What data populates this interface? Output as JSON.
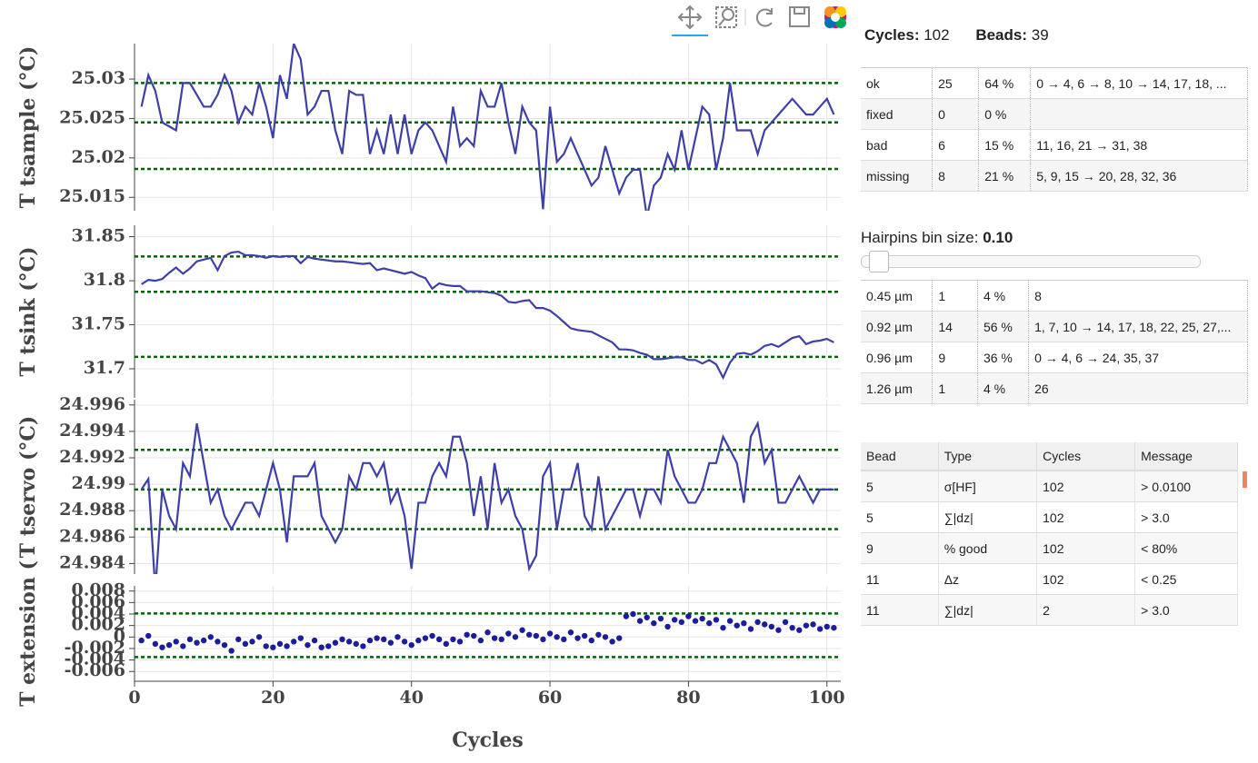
{
  "chart_data": [
    {
      "type": "line",
      "ylabel": "T tsample (°C)",
      "color": "#3f3fa8",
      "grid": true,
      "xlim": [
        0,
        102
      ],
      "xticks": [
        0,
        20,
        40,
        60,
        80,
        100
      ],
      "ylim": [
        25.0133,
        25.0345
      ],
      "yticks": [
        25.015,
        25.02,
        25.025,
        25.03
      ],
      "hlines": {
        "color": "#006400",
        "values": [
          25.0295,
          25.0245,
          25.0186
        ]
      },
      "x": [
        1,
        2,
        3,
        4,
        5,
        6,
        7,
        8,
        9,
        10,
        11,
        12,
        13,
        14,
        15,
        16,
        17,
        18,
        19,
        20,
        21,
        22,
        23,
        24,
        25,
        26,
        27,
        28,
        29,
        30,
        31,
        32,
        33,
        34,
        35,
        36,
        37,
        38,
        39,
        40,
        41,
        42,
        43,
        44,
        45,
        46,
        47,
        48,
        49,
        50,
        51,
        52,
        53,
        54,
        55,
        56,
        57,
        58,
        59,
        60,
        61,
        62,
        63,
        64,
        65,
        66,
        67,
        68,
        69,
        70,
        71,
        72,
        73,
        74,
        75,
        76,
        77,
        78,
        79,
        80,
        81,
        82,
        83,
        84,
        85,
        86,
        87,
        88,
        89,
        90,
        91,
        92,
        93,
        94,
        95,
        96,
        97,
        98,
        99,
        100,
        101
      ],
      "values": [
        25.0265,
        25.0305,
        25.0285,
        25.0245,
        25.024,
        25.0235,
        25.0295,
        25.0295,
        25.028,
        25.0265,
        25.0265,
        25.028,
        25.0305,
        25.0285,
        25.0245,
        25.0265,
        25.0255,
        25.0295,
        25.0265,
        25.0225,
        25.0305,
        25.0275,
        25.0345,
        25.0325,
        25.0255,
        25.0265,
        25.0285,
        25.0285,
        25.0235,
        25.0205,
        25.0285,
        25.028,
        25.028,
        25.0205,
        25.0235,
        25.0205,
        25.0255,
        25.0205,
        25.0255,
        25.0205,
        25.0235,
        25.0245,
        25.0235,
        25.0215,
        25.0195,
        25.0265,
        25.0215,
        25.0225,
        25.0215,
        25.0285,
        25.0265,
        25.0265,
        25.0295,
        25.0245,
        25.0205,
        25.0265,
        25.0245,
        25.0235,
        25.0135,
        25.0265,
        25.0195,
        25.0205,
        25.0225,
        25.0205,
        25.0185,
        25.0165,
        25.0175,
        25.0215,
        25.0185,
        25.0155,
        25.0175,
        25.0185,
        25.0185,
        25.0125,
        25.0165,
        25.0175,
        25.0205,
        25.0185,
        25.0235,
        25.0185,
        25.0225,
        25.0265,
        25.0255,
        25.0185,
        25.0225,
        25.0295,
        25.0235,
        25.0235,
        25.0235,
        25.0205,
        25.0235,
        25.0245,
        25.0255,
        25.0265,
        25.0275,
        25.0265,
        25.0255,
        25.0255,
        25.0265,
        25.0275,
        25.0255
      ]
    },
    {
      "type": "line",
      "ylabel": "T tsink (°C)",
      "color": "#3f3fa8",
      "grid": true,
      "xlim": [
        0,
        102
      ],
      "xticks": [
        0,
        20,
        40,
        60,
        80,
        100
      ],
      "ylim": [
        31.667,
        31.863
      ],
      "yticks": [
        31.7,
        31.75,
        31.8,
        31.85
      ],
      "hlines": {
        "color": "#006400",
        "values": [
          31.8275,
          31.7875,
          31.7135
        ]
      },
      "x": [
        1,
        2,
        3,
        4,
        5,
        6,
        7,
        8,
        9,
        10,
        11,
        12,
        13,
        14,
        15,
        16,
        17,
        18,
        19,
        20,
        21,
        22,
        23,
        24,
        25,
        26,
        27,
        28,
        29,
        30,
        31,
        32,
        33,
        34,
        35,
        36,
        37,
        38,
        39,
        40,
        41,
        42,
        43,
        44,
        45,
        46,
        47,
        48,
        49,
        50,
        51,
        52,
        53,
        54,
        55,
        56,
        57,
        58,
        59,
        60,
        61,
        62,
        63,
        64,
        65,
        66,
        67,
        68,
        69,
        70,
        71,
        72,
        73,
        74,
        75,
        76,
        77,
        78,
        79,
        80,
        81,
        82,
        83,
        84,
        85,
        86,
        87,
        88,
        89,
        90,
        91,
        92,
        93,
        94,
        95,
        96,
        97,
        98,
        99,
        100,
        101
      ],
      "values": [
        31.796,
        31.801,
        31.8,
        31.802,
        31.809,
        31.815,
        31.808,
        31.814,
        31.822,
        31.824,
        31.826,
        31.812,
        31.828,
        31.832,
        31.833,
        31.829,
        31.829,
        31.828,
        31.826,
        31.828,
        31.827,
        31.828,
        31.828,
        31.82,
        31.827,
        31.825,
        31.824,
        31.823,
        31.822,
        31.822,
        31.821,
        31.82,
        31.819,
        31.82,
        31.812,
        31.814,
        31.812,
        31.81,
        31.808,
        31.81,
        31.806,
        31.803,
        31.791,
        31.797,
        31.795,
        31.794,
        31.794,
        31.788,
        31.788,
        31.788,
        31.787,
        31.786,
        31.783,
        31.776,
        31.775,
        31.777,
        31.778,
        31.769,
        31.769,
        31.766,
        31.76,
        31.753,
        31.746,
        31.744,
        31.743,
        31.742,
        31.738,
        31.734,
        31.73,
        31.722,
        31.722,
        31.721,
        31.718,
        31.716,
        31.711,
        31.711,
        31.712,
        31.713,
        31.713,
        31.71,
        31.71,
        31.706,
        31.71,
        31.705,
        31.69,
        31.707,
        31.717,
        31.718,
        31.716,
        31.72,
        31.726,
        31.728,
        31.725,
        31.73,
        31.735,
        31.737,
        31.728,
        31.731,
        31.732,
        31.734,
        31.73
      ]
    },
    {
      "type": "line",
      "ylabel": "T tservo (°C)",
      "color": "#3f3fa8",
      "grid": true,
      "xlim": [
        0,
        102
      ],
      "xticks": [
        0,
        20,
        40,
        60,
        80,
        100
      ],
      "ylim": [
        24.9832,
        24.9964
      ],
      "yticks": [
        24.984,
        24.986,
        24.988,
        24.99,
        24.992,
        24.994,
        24.996
      ],
      "hlines": {
        "color": "#006400",
        "values": [
          24.9926,
          24.9896,
          24.9866
        ]
      },
      "x": [
        1,
        2,
        3,
        4,
        5,
        6,
        7,
        8,
        9,
        10,
        11,
        12,
        13,
        14,
        15,
        16,
        17,
        18,
        19,
        20,
        21,
        22,
        23,
        24,
        25,
        26,
        27,
        28,
        29,
        30,
        31,
        32,
        33,
        34,
        35,
        36,
        37,
        38,
        39,
        40,
        41,
        42,
        43,
        44,
        45,
        46,
        47,
        48,
        49,
        50,
        51,
        52,
        53,
        54,
        55,
        56,
        57,
        58,
        59,
        60,
        61,
        62,
        63,
        64,
        65,
        66,
        67,
        68,
        69,
        70,
        71,
        72,
        73,
        74,
        75,
        76,
        77,
        78,
        79,
        80,
        81,
        82,
        83,
        84,
        85,
        86,
        87,
        88,
        89,
        90,
        91,
        92,
        93,
        94,
        95,
        96,
        97,
        98,
        99,
        100,
        101
      ],
      "values": [
        24.9896,
        24.9904,
        24.982,
        24.9896,
        24.9876,
        24.9866,
        24.9916,
        24.9906,
        24.9946,
        24.9916,
        24.9886,
        24.9896,
        24.9876,
        24.9866,
        24.9876,
        24.9886,
        24.9886,
        24.9876,
        24.9896,
        24.9916,
        24.9896,
        24.9856,
        24.9906,
        24.9906,
        24.9906,
        24.9916,
        24.9876,
        24.9866,
        24.9856,
        24.9866,
        24.9906,
        24.9896,
        24.9916,
        24.9916,
        24.9906,
        24.9916,
        24.9886,
        24.9896,
        24.9876,
        24.9836,
        24.9886,
        24.9886,
        24.9906,
        24.9916,
        24.9906,
        24.9936,
        24.9936,
        24.9916,
        24.9876,
        24.9906,
        24.9866,
        24.9916,
        24.9886,
        24.9896,
        24.9876,
        24.9866,
        24.9836,
        24.9846,
        24.9906,
        24.9916,
        24.9866,
        24.9896,
        24.9896,
        24.9916,
        24.9876,
        24.9866,
        24.9906,
        24.9866,
        24.9876,
        24.9886,
        24.9896,
        24.9896,
        24.9876,
        24.9896,
        24.9896,
        24.9886,
        24.9926,
        24.9906,
        24.9896,
        24.9886,
        24.9886,
        24.9896,
        24.9916,
        24.9916,
        24.9936,
        24.9926,
        24.9916,
        24.9886,
        24.9936,
        24.9946,
        24.9916,
        24.9926,
        24.9886,
        24.9886,
        24.9896,
        24.9906,
        24.9896,
        24.9886,
        24.9896,
        24.9896,
        24.9896
      ]
    },
    {
      "type": "scatter",
      "ylabel": "T extension (",
      "xlabel": "Cycles",
      "color": "#1c1c9c",
      "grid": true,
      "xlim": [
        0,
        102
      ],
      "xticks": [
        0,
        20,
        40,
        60,
        80,
        100
      ],
      "ylim": [
        -0.0077,
        0.0089
      ],
      "yticks": [
        -0.006,
        -0.004,
        -0.002,
        0,
        0.002,
        0.004,
        0.006,
        0.008
      ],
      "hlines": {
        "color": "#006400",
        "values": [
          0.0041,
          -0.0035
        ]
      },
      "x": [
        1,
        2,
        3,
        4,
        5,
        6,
        7,
        8,
        9,
        10,
        11,
        12,
        13,
        14,
        15,
        16,
        17,
        18,
        19,
        20,
        21,
        22,
        23,
        24,
        25,
        26,
        27,
        28,
        29,
        30,
        31,
        32,
        33,
        34,
        35,
        36,
        37,
        38,
        39,
        40,
        41,
        42,
        43,
        44,
        45,
        46,
        47,
        48,
        49,
        50,
        51,
        52,
        53,
        54,
        55,
        56,
        57,
        58,
        59,
        60,
        61,
        62,
        63,
        64,
        65,
        66,
        67,
        68,
        69,
        70,
        71,
        72,
        73,
        74,
        75,
        76,
        77,
        78,
        79,
        80,
        81,
        82,
        83,
        84,
        85,
        86,
        87,
        88,
        89,
        90,
        91,
        92,
        93,
        94,
        95,
        96,
        97,
        98,
        99,
        100,
        101
      ],
      "values": [
        -0.0006,
        0.0002,
        -0.0012,
        -0.0018,
        -0.0014,
        -0.0008,
        -0.0016,
        -0.0004,
        -0.001,
        -0.0006,
        0,
        -0.0008,
        -0.0014,
        -0.0024,
        -0.0004,
        -0.0012,
        -0.0008,
        0,
        -0.0016,
        -0.0018,
        -0.0012,
        -0.0016,
        -0.0008,
        -0.0002,
        -0.0014,
        -0.0006,
        -0.0018,
        -0.0016,
        -0.001,
        -0.0004,
        -0.0008,
        -0.0012,
        -0.0016,
        -0.0006,
        -0.0002,
        -0.0004,
        -0.001,
        0,
        -0.0008,
        -0.0014,
        -0.0006,
        -0.0002,
        0.0002,
        -0.0004,
        -0.0012,
        -0.0004,
        -0.0008,
        0.0004,
        0.0002,
        -0.0006,
        0.0008,
        -0.0002,
        -0.0004,
        0.0006,
        0,
        0.0012,
        0.0004,
        0.0002,
        -0.0004,
        0.0006,
        0,
        -0.0004,
        0.0008,
        -0.0002,
        0.0002,
        -0.0006,
        0.0004,
        0,
        -0.0008,
        -0.0002,
        0.0036,
        0.004,
        0.0028,
        0.0034,
        0.0024,
        0.0032,
        0.0018,
        0.003,
        0.0026,
        0.0036,
        0.0028,
        0.0032,
        0.0024,
        0.003,
        0.0016,
        0.0028,
        0.002,
        0.0024,
        0.0014,
        0.0026,
        0.0022,
        0.0018,
        0.0012,
        0.0026,
        0.0016,
        0.0012,
        0.002,
        0.0022,
        0.0014,
        0.0018,
        0.0016
      ]
    }
  ],
  "summary": {
    "cycles_label": "Cycles:",
    "cycles": 102,
    "beads_label": "Beads:",
    "beads": 39
  },
  "status_table": {
    "rows": [
      [
        "ok",
        25,
        "64 %",
        "0 → 4, 6 → 8, 10 → 14, 17, 18, ..."
      ],
      [
        "fixed",
        0,
        "0 %",
        ""
      ],
      [
        "bad",
        6,
        "15 %",
        "11, 16, 21 → 31, 38"
      ],
      [
        "missing",
        8,
        "21 %",
        "5, 9, 15 → 20, 28, 32, 36"
      ]
    ]
  },
  "slider": {
    "label": "Hairpins bin size:",
    "value": "0.10"
  },
  "hairpin_table": {
    "rows": [
      [
        "0.45 µm",
        1,
        "4 %",
        8
      ],
      [
        "0.92 µm",
        14,
        "56 %",
        "1, 7, 10 → 14, 17, 18, 22, 25, 27,..."
      ],
      [
        "0.96 µm",
        9,
        "36 %",
        "0 → 4, 6 → 24, 35, 37"
      ],
      [
        "1.26 µm",
        1,
        "4 %",
        26
      ]
    ]
  },
  "message_table": {
    "header": [
      "Bead",
      "Type",
      "Cycles",
      "Message"
    ],
    "rows": [
      [
        5,
        "σ[HF]",
        102,
        "> 0.0100"
      ],
      [
        5,
        "∑|dz|",
        102,
        "> 3.0"
      ],
      [
        9,
        "% good",
        102,
        "< 80%"
      ],
      [
        11,
        "Δz",
        102,
        "< 0.25"
      ],
      [
        11,
        "∑|dz|",
        2,
        "> 3.0"
      ]
    ]
  }
}
